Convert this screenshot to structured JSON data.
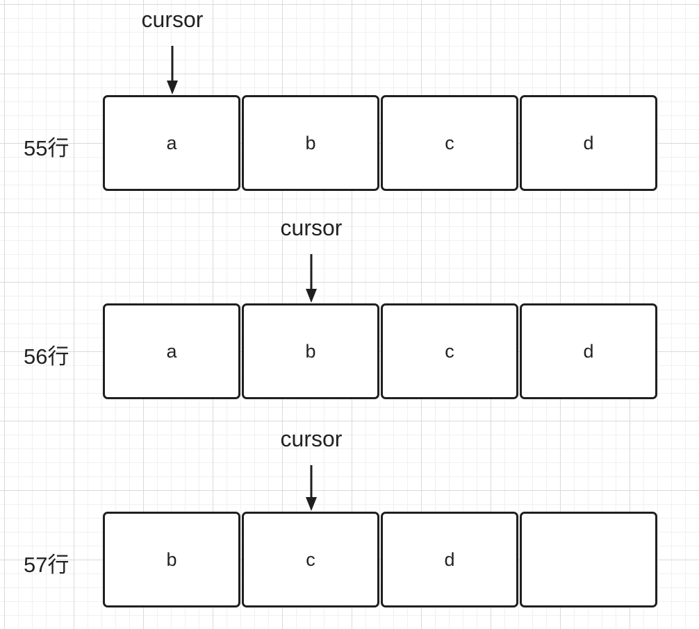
{
  "cursor_label": "cursor",
  "rows": [
    {
      "label": "55行",
      "cells": [
        "a",
        "b",
        "c",
        "d"
      ],
      "cursor_index": 0
    },
    {
      "label": "56行",
      "cells": [
        "a",
        "b",
        "c",
        "d"
      ],
      "cursor_index": 1
    },
    {
      "label": "57行",
      "cells": [
        "b",
        "c",
        "d",
        ""
      ],
      "cursor_index": 1
    }
  ]
}
